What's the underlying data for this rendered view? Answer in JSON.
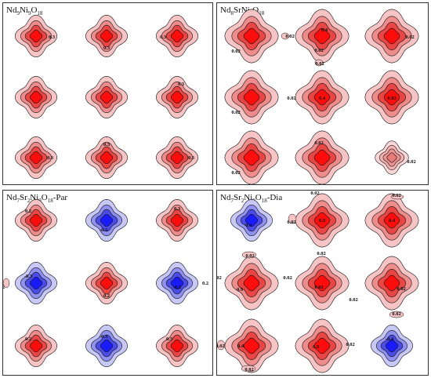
{
  "panels": [
    {
      "key": "p1",
      "title": {
        "a": "Nd",
        "a_sub": "9",
        "b": "Ni",
        "b_sub": "9",
        "c": "O",
        "c_sub": "18",
        "d": ""
      },
      "blobs": [
        {
          "c": "red",
          "s": "m",
          "l": "0.3"
        },
        {
          "c": "red",
          "s": "m",
          "l": "0.3"
        },
        {
          "c": "red",
          "s": "m",
          "l": "0.3"
        },
        {
          "c": "red",
          "s": "m",
          "l": ""
        },
        {
          "c": "red",
          "s": "m",
          "l": ""
        },
        {
          "c": "red",
          "s": "m",
          "l": "0.3"
        },
        {
          "c": "red",
          "s": "m",
          "l": "0.3"
        },
        {
          "c": "red",
          "s": "m",
          "l": "0.3"
        },
        {
          "c": "red",
          "s": "m",
          "l": "0.3"
        }
      ],
      "extras": []
    },
    {
      "key": "p2",
      "title": {
        "a": "Nd",
        "a_sub": "8",
        "b": "SrNi",
        "b_sub": "9",
        "c": "O",
        "c_sub": "18",
        "d": ""
      },
      "blobs": [
        {
          "c": "red",
          "s": "l",
          "l": "0.02"
        },
        {
          "c": "red",
          "s": "l",
          "l": "0.4"
        },
        {
          "c": "red",
          "s": "l",
          "l": "0.02"
        },
        {
          "c": "red",
          "s": "l",
          "l": "0.02"
        },
        {
          "c": "red",
          "s": "l",
          "l": "0.4"
        },
        {
          "c": "red",
          "s": "l",
          "l": "0.02"
        },
        {
          "c": "red",
          "s": "l",
          "l": "0.02"
        },
        {
          "c": "red",
          "s": "l",
          "l": "0.02"
        },
        {
          "c": "pink",
          "s": "s",
          "l": "0.02"
        }
      ],
      "extras": [
        {
          "p": "0.02"
        },
        {
          "p": "0.02"
        },
        {
          "p": "0.02"
        },
        {
          "p": "0.02"
        }
      ]
    },
    {
      "key": "p3",
      "title": {
        "a": "Nd",
        "a_sub": "7",
        "b": "Sr",
        "b_sub": "2",
        "c": "Ni",
        "c_sub": "9",
        "d": "O",
        "d_sub": "18",
        "e": "-Par"
      },
      "blobs": [
        {
          "c": "red",
          "s": "m",
          "l": "0.2"
        },
        {
          "c": "blue",
          "s": "m",
          "l": "-0.3"
        },
        {
          "c": "red",
          "s": "m",
          "l": "0.3"
        },
        {
          "c": "blue",
          "s": "m",
          "l": "-0.3"
        },
        {
          "c": "red",
          "s": "m",
          "l": "0.2"
        },
        {
          "c": "blue",
          "s": "m",
          "l": "-0.3"
        },
        {
          "c": "red",
          "s": "m",
          "l": "0.2"
        },
        {
          "c": "blue",
          "s": "m",
          "l": "-0.3"
        },
        {
          "c": "red",
          "s": "m",
          "l": "0.3"
        }
      ],
      "extras": [
        {
          "p": "0.2"
        },
        {
          "p": "0.2"
        }
      ]
    },
    {
      "key": "p4",
      "title": {
        "a": "Nd",
        "a_sub": "7",
        "b": "Sr",
        "b_sub": "2",
        "c": "Ni",
        "c_sub": "9",
        "d": "O",
        "d_sub": "18",
        "e": "-Dia"
      },
      "blobs": [
        {
          "c": "blue",
          "s": "m",
          "l": "0.4"
        },
        {
          "c": "red",
          "s": "l",
          "l": "0.9"
        },
        {
          "c": "red",
          "s": "l",
          "l": "0.4"
        },
        {
          "c": "red",
          "s": "l",
          "l": "0.9"
        },
        {
          "c": "red",
          "s": "l",
          "l": "0.02"
        },
        {
          "c": "red",
          "s": "l",
          "l": "0.02"
        },
        {
          "c": "red",
          "s": "l",
          "l": "0.4"
        },
        {
          "c": "red",
          "s": "l",
          "l": "0.9"
        },
        {
          "c": "blue",
          "s": "m",
          "l": "-0.4"
        }
      ],
      "extras": [
        {
          "p": "0.02"
        },
        {
          "p": "0.02"
        },
        {
          "p": "0.02"
        },
        {
          "p": "0.02"
        },
        {
          "p": "0.02"
        },
        {
          "p": "0.02"
        },
        {
          "p": "0.02"
        },
        {
          "p": "0.02"
        },
        {
          "p": "0.02"
        },
        {
          "p": "0.02"
        },
        {
          "p": "0.02"
        },
        {
          "p": "0.02"
        }
      ]
    }
  ],
  "colors": {
    "red": [
      "#f6c4c4",
      "#ee8c8c",
      "#e84545",
      "#ff0d0d"
    ],
    "blue": [
      "#c8c8f6",
      "#9090ee",
      "#4b4be6",
      "#1a1aff"
    ],
    "pink": [
      "#f9d6d6",
      "#f3b3b3",
      "#ec9393",
      "#e87a7a"
    ]
  }
}
